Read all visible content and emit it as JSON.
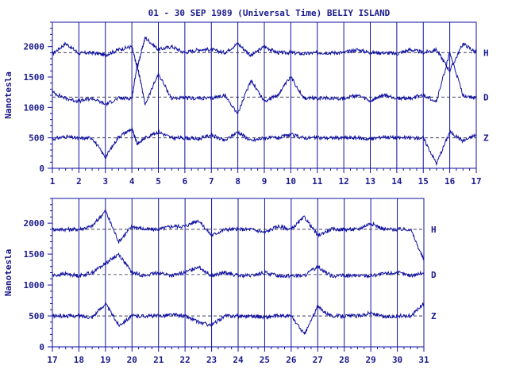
{
  "chart_data": {
    "type": "line",
    "title": "01 - 30 SEP 1989 (Universal Time) BELIY ISLAND",
    "ylabel": "Nanotesla",
    "xlabel": "",
    "ylim": [
      0,
      2400
    ],
    "yticks": [
      0,
      500,
      1000,
      1500,
      2000
    ],
    "grid": "vertical lines at each day; dashed baseline per component",
    "color": "#1010a0",
    "components": [
      "H",
      "D",
      "Z"
    ],
    "baselines": {
      "H": 1900,
      "D": 1170,
      "Z": 500
    },
    "panels": [
      {
        "x": [
          1,
          17
        ],
        "xticks": [
          "1",
          "2",
          "3",
          "4",
          "5",
          "6",
          "7",
          "8",
          "9",
          "10",
          "11",
          "12",
          "13",
          "14",
          "15",
          "16",
          "17"
        ],
        "series": [
          {
            "name": "H",
            "days": [
              1,
              1.5,
              2,
              2.5,
              3,
              3.5,
              4,
              4.2,
              4.5,
              5,
              5.5,
              6,
              6.5,
              7,
              7.5,
              8,
              8.5,
              9,
              9.5,
              10,
              10.5,
              11,
              11.5,
              12,
              12.5,
              13,
              13.5,
              14,
              14.5,
              15,
              15.5,
              16,
              16.5,
              17
            ],
            "values": [
              1880,
              2050,
              1890,
              1900,
              1860,
              1950,
              2000,
              1650,
              2150,
              1950,
              2000,
              1900,
              1950,
              1950,
              1900,
              2050,
              1850,
              2000,
              1900,
              1900,
              1880,
              1900,
              1900,
              1900,
              1950,
              1900,
              1900,
              1880,
              1950,
              1900,
              1950,
              1600,
              2050,
              1900
            ]
          },
          {
            "name": "D",
            "days": [
              1,
              1.5,
              2,
              2.5,
              3,
              3.5,
              4,
              4.2,
              4.5,
              5,
              5.5,
              6,
              6.5,
              7,
              7.5,
              8,
              8.5,
              9,
              9.5,
              10,
              10.5,
              11,
              11.5,
              12,
              12.5,
              13,
              13.5,
              14,
              14.5,
              15,
              15.5,
              16,
              16.5,
              17
            ],
            "values": [
              1250,
              1150,
              1100,
              1150,
              1050,
              1150,
              1150,
              1700,
              1050,
              1550,
              1150,
              1150,
              1150,
              1150,
              1200,
              900,
              1450,
              1100,
              1200,
              1500,
              1150,
              1150,
              1150,
              1150,
              1200,
              1100,
              1200,
              1150,
              1150,
              1200,
              1100,
              1900,
              1200,
              1150
            ]
          },
          {
            "name": "Z",
            "days": [
              1,
              1.5,
              2,
              2.5,
              3,
              3.5,
              4,
              4.2,
              4.5,
              5,
              5.5,
              6,
              6.5,
              7,
              7.5,
              8,
              8.5,
              9,
              9.5,
              10,
              10.5,
              11,
              11.5,
              12,
              12.5,
              13,
              13.5,
              14,
              14.5,
              15,
              15.5,
              16,
              16.5,
              17
            ],
            "values": [
              480,
              520,
              490,
              500,
              180,
              520,
              650,
              400,
              500,
              600,
              500,
              500,
              480,
              550,
              450,
              600,
              450,
              500,
              500,
              550,
              500,
              500,
              500,
              500,
              500,
              480,
              520,
              500,
              500,
              500,
              80,
              600,
              450,
              550
            ]
          }
        ]
      },
      {
        "x": [
          17,
          31
        ],
        "xticks": [
          "17",
          "18",
          "19",
          "20",
          "21",
          "22",
          "23",
          "24",
          "25",
          "26",
          "27",
          "28",
          "29",
          "30",
          "31"
        ],
        "series": [
          {
            "name": "H",
            "days": [
              17,
              17.5,
              18,
              18.5,
              19,
              19.5,
              20,
              20.5,
              21,
              21.5,
              22,
              22.5,
              23,
              23.5,
              24,
              24.5,
              25,
              25.5,
              26,
              26.5,
              27,
              27.5,
              28,
              28.5,
              29,
              29.5,
              30,
              30.5,
              31
            ],
            "values": [
              1900,
              1900,
              1900,
              1950,
              2200,
              1700,
              1950,
              1900,
              1900,
              1950,
              1950,
              2050,
              1800,
              1900,
              1900,
              1900,
              1850,
              1950,
              1900,
              2100,
              1800,
              1900,
              1900,
              1900,
              2000,
              1900,
              1900,
              1900,
              1400
            ]
          },
          {
            "name": "D",
            "days": [
              17,
              17.5,
              18,
              18.5,
              19,
              19.5,
              20,
              20.5,
              21,
              21.5,
              22,
              22.5,
              23,
              23.5,
              24,
              24.5,
              25,
              25.5,
              26,
              26.5,
              27,
              27.5,
              28,
              28.5,
              29,
              29.5,
              30,
              30.5,
              31
            ],
            "values": [
              1150,
              1180,
              1150,
              1200,
              1350,
              1500,
              1200,
              1150,
              1200,
              1150,
              1200,
              1300,
              1150,
              1200,
              1150,
              1150,
              1200,
              1150,
              1150,
              1150,
              1300,
              1150,
              1150,
              1150,
              1150,
              1180,
              1200,
              1150,
              1200
            ]
          },
          {
            "name": "Z",
            "days": [
              17,
              17.5,
              18,
              18.5,
              19,
              19.5,
              20,
              20.5,
              21,
              21.5,
              22,
              22.5,
              23,
              23.5,
              24,
              24.5,
              25,
              25.5,
              26,
              26.5,
              27,
              27.5,
              28,
              28.5,
              29,
              29.5,
              30,
              30.5,
              31
            ],
            "values": [
              500,
              500,
              500,
              480,
              700,
              350,
              500,
              500,
              500,
              520,
              500,
              400,
              350,
              500,
              500,
              500,
              480,
              500,
              500,
              200,
              650,
              500,
              500,
              500,
              550,
              480,
              500,
              500,
              700
            ]
          }
        ]
      }
    ]
  }
}
